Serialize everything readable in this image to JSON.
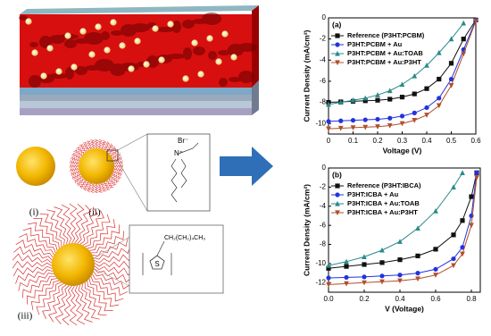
{
  "chart_data": [
    {
      "type": "line",
      "title": "(a)",
      "x_label": "Voltage (V)",
      "y_label": "Current Density (mA/cm²)",
      "x": [
        0,
        0.05,
        0.1,
        0.15,
        0.2,
        0.25,
        0.3,
        0.35,
        0.4,
        0.45,
        0.5,
        0.55,
        0.6
      ],
      "xlim": [
        0,
        0.6
      ],
      "xticks": [
        0,
        0.1,
        0.2,
        0.3,
        0.4,
        0.5,
        0.6
      ],
      "ylim": [
        -11,
        0
      ],
      "yticks": [
        0,
        -2,
        -4,
        -6,
        -8,
        -10
      ],
      "legend": "upper left",
      "series": [
        {
          "name": "Reference (P3HT:PCBM)",
          "color": "#111111",
          "marker": "square",
          "values": [
            -8.0,
            -7.95,
            -7.9,
            -7.85,
            -7.8,
            -7.7,
            -7.5,
            -7.2,
            -6.7,
            -5.8,
            -4.3,
            -2.0,
            -0.2
          ]
        },
        {
          "name": "P3HT:PCBM + Au",
          "color": "#2233dd",
          "marker": "circle",
          "values": [
            -9.8,
            -9.75,
            -9.7,
            -9.65,
            -9.6,
            -9.5,
            -9.3,
            -9.0,
            -8.5,
            -7.6,
            -5.8,
            -3.0,
            -0.2
          ]
        },
        {
          "name": "P3HT:PCBM + Au:TOAB",
          "color": "#2a8a8a",
          "marker": "triangle-up",
          "values": [
            -8.2,
            -8.0,
            -7.8,
            -7.6,
            -7.3,
            -6.9,
            -6.3,
            -5.5,
            -4.5,
            -3.3,
            -2.0,
            -0.5,
            null
          ]
        },
        {
          "name": "P3HT:PCBM + Au:P3HT",
          "color": "#b0502a",
          "marker": "triangle-down",
          "values": [
            -10.5,
            -10.45,
            -10.4,
            -10.35,
            -10.3,
            -10.2,
            -10.0,
            -9.7,
            -9.2,
            -8.3,
            -6.4,
            -3.4,
            -0.3
          ]
        }
      ]
    },
    {
      "type": "line",
      "title": "(b)",
      "x_label": "V (Voltage)",
      "y_label": "Current Density (mA/cm²)",
      "x": [
        0,
        0.1,
        0.2,
        0.3,
        0.4,
        0.5,
        0.6,
        0.7,
        0.75,
        0.8,
        0.83
      ],
      "xlim": [
        0,
        0.85
      ],
      "xticks": [
        {
          "value": 0,
          "label": "0.0"
        },
        0.2,
        0.4,
        0.6,
        0.8
      ],
      "ylim": [
        -13,
        0
      ],
      "yticks": [
        0,
        -2,
        -4,
        -6,
        -8,
        -10,
        -12
      ],
      "legend": "upper left",
      "series": [
        {
          "name": "Reference (P3HT:IBCA)",
          "color": "#111111",
          "marker": "square",
          "values": [
            -10.5,
            -10.3,
            -10.1,
            -9.9,
            -9.6,
            -9.2,
            -8.5,
            -7.0,
            -5.5,
            -3.0,
            -0.5
          ]
        },
        {
          "name": "P3HT:ICBA + Au",
          "color": "#2233dd",
          "marker": "circle",
          "values": [
            -11.5,
            -11.45,
            -11.4,
            -11.3,
            -11.2,
            -11.0,
            -10.6,
            -9.5,
            -8.3,
            -5.0,
            -0.5
          ]
        },
        {
          "name": "P3HT:ICBA + Au:TOAB",
          "color": "#2a8a8a",
          "marker": "triangle-up",
          "values": [
            -10.2,
            -9.8,
            -9.3,
            -8.6,
            -7.7,
            -6.3,
            -4.5,
            -2.0,
            -0.5,
            null,
            null
          ]
        },
        {
          "name": "P3HT:ICBA + Au:P3HT",
          "color": "#b0502a",
          "marker": "triangle-down",
          "values": [
            -12.2,
            -12.1,
            -12.0,
            -11.9,
            -11.8,
            -11.6,
            -11.2,
            -10.2,
            -9.0,
            -6.0,
            -1.0
          ]
        }
      ]
    }
  ],
  "illustration": {
    "labels": [
      "(i)",
      "(ii)",
      "(iii)"
    ],
    "ligand_1": [
      "Br⁻",
      "N⁺"
    ],
    "ligand_2": "CH₂(CH₂)₄CH₃"
  }
}
